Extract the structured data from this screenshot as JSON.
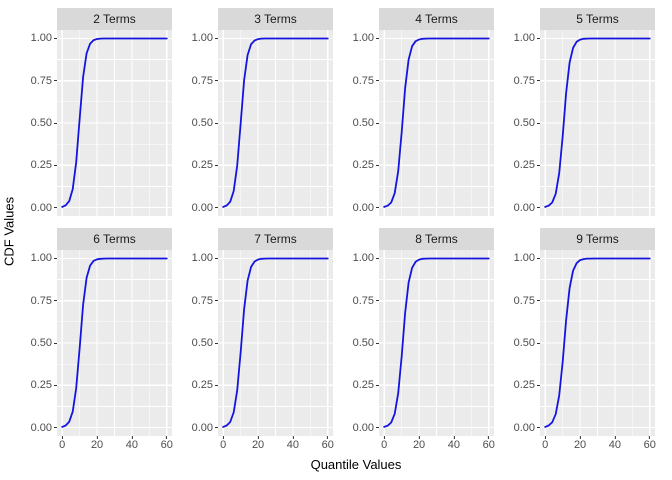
{
  "chart_data": {
    "type": "line",
    "description": "Faceted ggplot-style figure of empirical CDF curves for sums with 2 through 9 terms",
    "xlabel": "Quantile Values",
    "ylabel": "CDF Values",
    "xlim": [
      0,
      60
    ],
    "ylim": [
      0,
      1
    ],
    "x_ticks": [
      0,
      20,
      40,
      60
    ],
    "x_tick_labels": [
      "0",
      "20",
      "40",
      "60"
    ],
    "x_minor": [
      10,
      30,
      50
    ],
    "y_ticks": [
      0,
      0.25,
      0.5,
      0.75,
      1
    ],
    "y_tick_labels": [
      "0.00",
      "0.25",
      "0.50",
      "0.75",
      "1.00"
    ],
    "y_minor": [
      0.125,
      0.375,
      0.625,
      0.875
    ],
    "grid": "on",
    "legend": "none",
    "line_color": "#1414e0",
    "panel_bg": "#ebebeb",
    "strip_bg": "#d9d9d9",
    "grid_color": "#ffffff",
    "tick_text_color": "#4d4d4d",
    "x": [
      0,
      2,
      4,
      6,
      8,
      10,
      12,
      14,
      16,
      18,
      20,
      22,
      24,
      26,
      28,
      30,
      35,
      40,
      45,
      50,
      55,
      60
    ],
    "panels": [
      {
        "title": "2 Terms",
        "cdf": [
          0.004,
          0.013,
          0.038,
          0.108,
          0.269,
          0.528,
          0.772,
          0.912,
          0.969,
          0.99,
          0.997,
          0.999,
          1,
          1,
          1,
          1,
          1,
          1,
          1,
          1,
          1,
          1
        ]
      },
      {
        "title": "3 Terms",
        "cdf": [
          0.004,
          0.012,
          0.034,
          0.098,
          0.248,
          0.5,
          0.752,
          0.902,
          0.966,
          0.988,
          0.996,
          0.999,
          1,
          1,
          1,
          1,
          1,
          1,
          1,
          1,
          1,
          1
        ]
      },
      {
        "title": "4 Terms",
        "cdf": [
          0.004,
          0.011,
          0.03,
          0.085,
          0.215,
          0.446,
          0.704,
          0.875,
          0.954,
          0.984,
          0.994,
          0.998,
          0.999,
          1,
          1,
          1,
          1,
          1,
          1,
          1,
          1,
          1
        ]
      },
      {
        "title": "5 Terms",
        "cdf": [
          0.004,
          0.011,
          0.03,
          0.081,
          0.203,
          0.422,
          0.676,
          0.857,
          0.945,
          0.98,
          0.993,
          0.998,
          0.999,
          1,
          1,
          1,
          1,
          1,
          1,
          1,
          1,
          1
        ]
      },
      {
        "title": "6 Terms",
        "cdf": [
          0.004,
          0.012,
          0.034,
          0.094,
          0.233,
          0.473,
          0.726,
          0.886,
          0.958,
          0.986,
          0.995,
          0.998,
          0.999,
          1,
          1,
          1,
          1,
          1,
          1,
          1,
          1,
          1
        ]
      },
      {
        "title": "7 Terms",
        "cdf": [
          0.004,
          0.012,
          0.033,
          0.09,
          0.22,
          0.448,
          0.699,
          0.869,
          0.95,
          0.982,
          0.994,
          0.998,
          0.999,
          1,
          1,
          1,
          1,
          1,
          1,
          1,
          1,
          1
        ]
      },
      {
        "title": "8 Terms",
        "cdf": [
          0.004,
          0.011,
          0.03,
          0.081,
          0.203,
          0.422,
          0.676,
          0.857,
          0.945,
          0.98,
          0.993,
          0.998,
          0.999,
          1,
          1,
          1,
          1,
          1,
          1,
          1,
          1,
          1
        ]
      },
      {
        "title": "9 Terms",
        "cdf": [
          0.004,
          0.012,
          0.031,
          0.079,
          0.19,
          0.389,
          0.634,
          0.825,
          0.928,
          0.972,
          0.99,
          0.996,
          0.999,
          0.999,
          1,
          1,
          1,
          1,
          1,
          1,
          1,
          1
        ]
      }
    ]
  }
}
